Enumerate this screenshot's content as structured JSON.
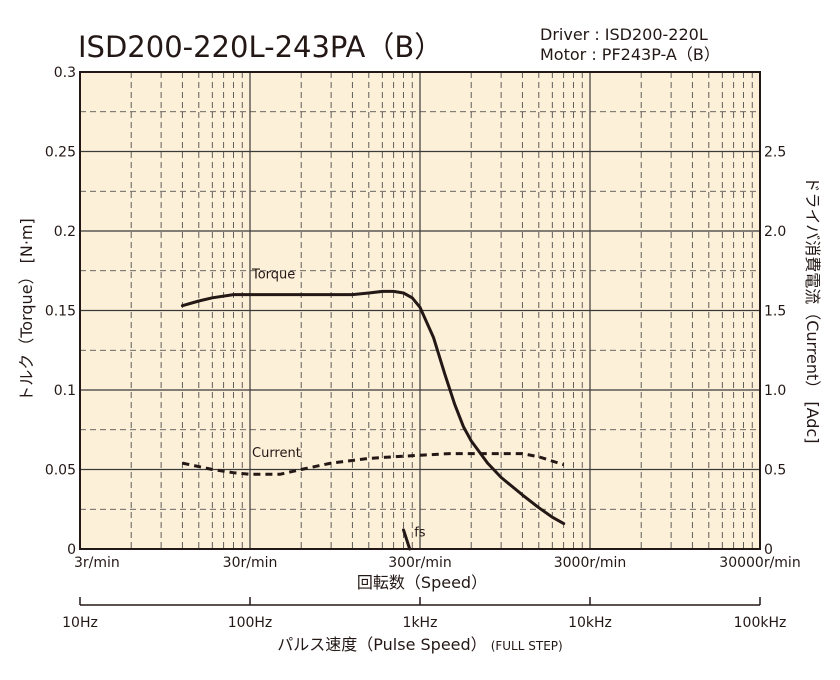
{
  "title": "ISD200-220L-243PA（B）",
  "driver_label": "Driver : ISD200-220L",
  "motor_label": "Motor : PF243P-A（B）",
  "chart_data": {
    "type": "line",
    "title": "ISD200-220L-243PA（B）",
    "x_scale": "log",
    "x_speed_ticks": [
      "3r/min",
      "30r/min",
      "300r/min",
      "3000r/min",
      "30000r/min"
    ],
    "x_speed_label": "回転数（Speed）",
    "x_pulse_ticks": [
      "10Hz",
      "100Hz",
      "1kHz",
      "10kHz",
      "100kHz"
    ],
    "x_pulse_label": "パルス速度（Pulse Speed）",
    "x_pulse_label_note": "(FULL STEP)",
    "xlim_hz": [
      10,
      100000
    ],
    "y_left_label": "トルク（Torque） [N·m]",
    "y_left_ticks": [
      "0",
      "0.05",
      "0.1",
      "0.15",
      "0.2",
      "0.25",
      "0.3"
    ],
    "y_left_lim": [
      0,
      0.3
    ],
    "y_right_label": "ドライバ消費電流（Current） [Adc]",
    "y_right_ticks": [
      "0",
      "0.5",
      "1.0",
      "1.5",
      "2.0",
      "2.5"
    ],
    "y_right_lim": [
      0,
      3.0
    ],
    "grid": true,
    "series": [
      {
        "name": "Torque",
        "axis": "left",
        "style": "solid",
        "x_hz": [
          40,
          50,
          60,
          80,
          100,
          150,
          200,
          300,
          400,
          500,
          600,
          700,
          800,
          900,
          1000,
          1200,
          1400,
          1600,
          1800,
          2000,
          2500,
          3000,
          4000,
          5000,
          6000,
          7000
        ],
        "values": [
          0.153,
          0.156,
          0.158,
          0.16,
          0.16,
          0.16,
          0.16,
          0.16,
          0.16,
          0.161,
          0.162,
          0.162,
          0.161,
          0.158,
          0.152,
          0.133,
          0.11,
          0.091,
          0.077,
          0.068,
          0.054,
          0.045,
          0.034,
          0.026,
          0.02,
          0.016
        ]
      },
      {
        "name": "Current",
        "axis": "right",
        "style": "dashed",
        "x_hz": [
          40,
          60,
          80,
          100,
          150,
          200,
          300,
          500,
          700,
          1000,
          1500,
          2000,
          3000,
          4000,
          5000,
          7000
        ],
        "values": [
          0.54,
          0.5,
          0.48,
          0.47,
          0.47,
          0.5,
          0.54,
          0.57,
          0.58,
          0.59,
          0.6,
          0.6,
          0.6,
          0.6,
          0.58,
          0.53
        ]
      }
    ],
    "annotations": [
      {
        "text": "Torque",
        "x_hz": 100,
        "y": 0.17
      },
      {
        "text": "Current",
        "x_hz": 100,
        "y": 0.058
      },
      {
        "text": "fs",
        "x_hz": 900,
        "y": 0.008
      }
    ],
    "fs_line": {
      "x_hz": [
        800,
        870
      ],
      "values": [
        0.012,
        0.0
      ]
    }
  },
  "colors": {
    "plot_bg": "#fdf0d8",
    "line": "#231815",
    "grid": "#3a3a3a"
  }
}
